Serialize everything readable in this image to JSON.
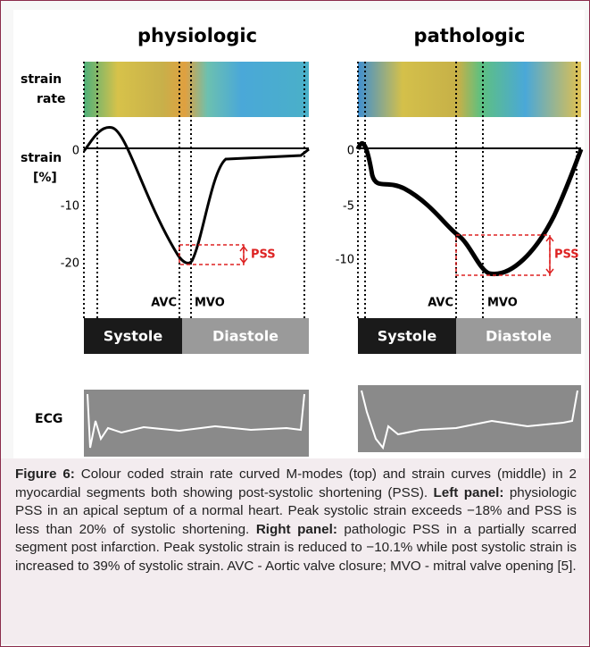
{
  "figure": {
    "left": {
      "title": "physiologic",
      "yticks": [
        0,
        -10,
        -20
      ],
      "pss": "PSS",
      "avc": "AVC",
      "mvo": "MVO",
      "systole": "Systole",
      "diastole": "Diastole"
    },
    "right": {
      "title": "pathologic",
      "yticks": [
        0,
        -5,
        -10
      ],
      "pss": "PSS",
      "avc": "AVC",
      "mvo": "MVO",
      "systole": "Systole",
      "diastole": "Diastole"
    },
    "row_labels": {
      "strain_rate": [
        "strain",
        "rate"
      ],
      "strain": [
        "strain",
        "[%]"
      ],
      "ecg": "ECG"
    }
  },
  "caption": {
    "label": "Figure 6:",
    "text": " Colour coded strain rate curved M-modes (top) and strain curves (middle) in 2 myocardial segments both showing post-systolic shortening (PSS). ",
    "left_label": "Left panel:",
    "left_text": " physiologic PSS in an apical septum of a normal heart. Peak systolic strain exceeds −18% and PSS is less than 20% of systolic shortening. ",
    "right_label": "Right panel:",
    "right_text": " pathologic PSS in a partially scarred segment post infarction. Peak systolic strain is reduced to −10.1% while post systolic strain is increased to 39% of systolic strain. AVC - Aortic valve closure; MVO - mitral valve opening [5]."
  }
}
